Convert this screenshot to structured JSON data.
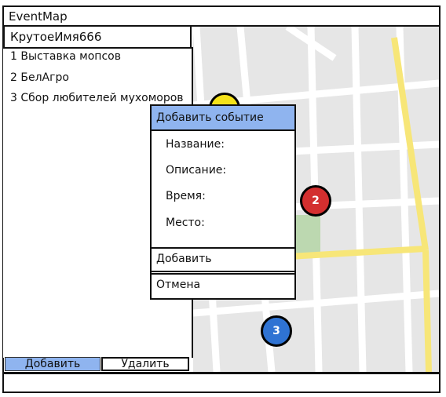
{
  "app": {
    "title": "EventMap"
  },
  "user": {
    "name": "КрутоеИмя666"
  },
  "events": [
    {
      "label": "1 Выставка мопсов"
    },
    {
      "label": "2 БелАгро"
    },
    {
      "label": "3 Сбор любителей мухоморов"
    }
  ],
  "sidebar_actions": {
    "add_label": "Добавить",
    "delete_label": "Удалить"
  },
  "dialog": {
    "title": "Добавить событие",
    "fields": {
      "name_label": "Название:",
      "description_label": "Описание:",
      "time_label": "Время:",
      "place_label": "Место:"
    },
    "add_label": "Добавить",
    "cancel_label": "Отмена"
  },
  "map_markers": [
    {
      "number": "2",
      "color": "#d32f2f"
    },
    {
      "number": "3",
      "color": "#2f73d3"
    },
    {
      "number": "",
      "color": "#f5e21a"
    }
  ],
  "colors": {
    "accent": "#8fb4ef",
    "map_bg": "#e6e6e6",
    "road_yellow": "#f7e678",
    "park_green": "#bcd8b0"
  }
}
